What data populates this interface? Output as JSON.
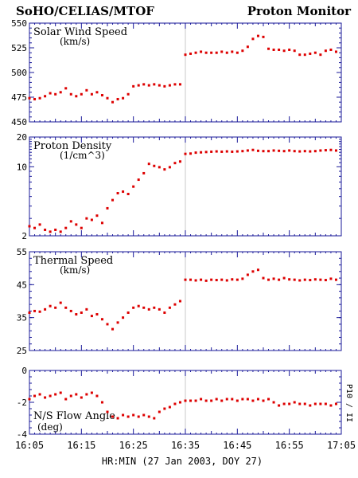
{
  "header": {
    "left_title": "SoHO/CELIAS/MTOF",
    "right_title": "Proton Monitor"
  },
  "side_label": "P10 / II",
  "chart_data": [
    {
      "type": "scatter",
      "title": "Solar Wind Speed",
      "subtitle": "(km/s)",
      "ylim": [
        450,
        550
      ],
      "yticks": [
        450,
        475,
        500,
        525,
        550
      ],
      "ytick_labels": [
        "450",
        "475",
        "500",
        "525",
        "550"
      ],
      "log": false,
      "color": "#dd0000",
      "x_minutes": [
        0,
        1,
        2,
        3,
        4,
        5,
        6,
        7,
        8,
        9,
        10,
        11,
        12,
        13,
        14,
        15,
        16,
        17,
        18,
        19,
        20,
        21,
        22,
        23,
        24,
        25,
        26,
        27,
        28,
        29,
        30,
        31,
        32,
        33,
        34,
        35,
        36,
        37,
        38,
        39,
        40,
        41,
        42,
        43,
        44,
        45,
        46,
        47,
        48,
        49,
        50,
        51,
        52,
        53,
        54,
        55,
        56,
        57,
        58,
        59
      ],
      "values": [
        474,
        473,
        474,
        476,
        479,
        478,
        480,
        484,
        478,
        476,
        478,
        482,
        478,
        480,
        477,
        474,
        470,
        473,
        474,
        478,
        486,
        487,
        488,
        487,
        488,
        487,
        486,
        487,
        488,
        488,
        518,
        519,
        520,
        521,
        520,
        520,
        520,
        521,
        520,
        521,
        520,
        522,
        526,
        534,
        537,
        536,
        524,
        523,
        523,
        522,
        523,
        522,
        518,
        518,
        519,
        520,
        518,
        522,
        523,
        521
      ]
    },
    {
      "type": "scatter",
      "title": "Proton Density",
      "subtitle": "(1/cm^3)",
      "ylim": [
        2,
        20
      ],
      "yticks": [
        2,
        10,
        20
      ],
      "ytick_labels": [
        "2",
        "10",
        "20"
      ],
      "log": true,
      "color": "#dd0000",
      "x_minutes": [
        0,
        1,
        2,
        3,
        4,
        5,
        6,
        7,
        8,
        9,
        10,
        11,
        12,
        13,
        14,
        15,
        16,
        17,
        18,
        19,
        20,
        21,
        22,
        23,
        24,
        25,
        26,
        27,
        28,
        29,
        30,
        31,
        32,
        33,
        34,
        35,
        36,
        37,
        38,
        39,
        40,
        41,
        42,
        43,
        44,
        45,
        46,
        47,
        48,
        49,
        50,
        51,
        52,
        53,
        54,
        55,
        56,
        57,
        58,
        59
      ],
      "values": [
        2.5,
        2.4,
        2.6,
        2.3,
        2.2,
        2.3,
        2.2,
        2.4,
        2.8,
        2.6,
        2.4,
        3.0,
        2.9,
        3.2,
        2.7,
        3.8,
        4.6,
        5.4,
        5.6,
        5.3,
        6.3,
        7.4,
        8.6,
        10.7,
        10.2,
        9.9,
        9.4,
        9.9,
        10.9,
        11.3,
        13.5,
        13.6,
        13.9,
        14.0,
        14.1,
        14.2,
        14.3,
        14.2,
        14.3,
        14.2,
        14.3,
        14.4,
        14.6,
        14.8,
        14.5,
        14.4,
        14.4,
        14.6,
        14.5,
        14.4,
        14.6,
        14.4,
        14.3,
        14.4,
        14.3,
        14.4,
        14.6,
        14.7,
        14.8,
        14.6
      ]
    },
    {
      "type": "scatter",
      "title": "Thermal Speed",
      "subtitle": "(km/s)",
      "ylim": [
        25,
        55
      ],
      "yticks": [
        25,
        35,
        45,
        55
      ],
      "ytick_labels": [
        "25",
        "35",
        "45",
        "55"
      ],
      "log": false,
      "color": "#dd0000",
      "x_minutes": [
        0,
        1,
        2,
        3,
        4,
        5,
        6,
        7,
        8,
        9,
        10,
        11,
        12,
        13,
        14,
        15,
        16,
        17,
        18,
        19,
        20,
        21,
        22,
        23,
        24,
        25,
        26,
        27,
        28,
        29,
        30,
        31,
        32,
        33,
        34,
        35,
        36,
        37,
        38,
        39,
        40,
        41,
        42,
        43,
        44,
        45,
        46,
        47,
        48,
        49,
        50,
        51,
        52,
        53,
        54,
        55,
        56,
        57,
        58,
        59
      ],
      "values": [
        36.5,
        37,
        36.8,
        37.5,
        38.5,
        38,
        39.5,
        38,
        37,
        36,
        36.5,
        37.5,
        35.5,
        36,
        34.5,
        33,
        31.5,
        33.5,
        35,
        36.5,
        38,
        38.5,
        38,
        37.5,
        38,
        37.5,
        36.5,
        38,
        39,
        40,
        46.5,
        46.5,
        46.3,
        46.5,
        46.2,
        46.5,
        46.4,
        46.5,
        46.3,
        46.6,
        46.5,
        46.8,
        48,
        49,
        49.5,
        47,
        46.5,
        46.8,
        46.5,
        47,
        46.6,
        46.5,
        46.3,
        46.5,
        46.4,
        46.6,
        46.5,
        46.4,
        46.8,
        46.5
      ]
    },
    {
      "type": "scatter",
      "title": "N/S Flow Angle",
      "subtitle": "(deg)",
      "ylim": [
        -4,
        0
      ],
      "yticks": [
        -4,
        -2,
        0
      ],
      "ytick_labels": [
        "-4",
        "-2",
        "0"
      ],
      "log": false,
      "color": "#dd0000",
      "x_minutes": [
        0,
        1,
        2,
        3,
        4,
        5,
        6,
        7,
        8,
        9,
        10,
        11,
        12,
        13,
        14,
        15,
        16,
        17,
        18,
        19,
        20,
        21,
        22,
        23,
        24,
        25,
        26,
        27,
        28,
        29,
        30,
        31,
        32,
        33,
        34,
        35,
        36,
        37,
        38,
        39,
        40,
        41,
        42,
        43,
        44,
        45,
        46,
        47,
        48,
        49,
        50,
        51,
        52,
        53,
        54,
        55,
        56,
        57,
        58,
        59
      ],
      "values": [
        -1.8,
        -1.6,
        -1.5,
        -1.7,
        -1.6,
        -1.5,
        -1.4,
        -1.8,
        -1.6,
        -1.5,
        -1.7,
        -1.5,
        -1.4,
        -1.6,
        -2.0,
        -2.6,
        -2.9,
        -3.0,
        -2.8,
        -2.9,
        -2.8,
        -2.9,
        -2.8,
        -2.9,
        -3.0,
        -2.6,
        -2.4,
        -2.3,
        -2.1,
        -2.0,
        -1.9,
        -1.9,
        -1.9,
        -1.8,
        -1.9,
        -1.9,
        -1.8,
        -1.9,
        -1.8,
        -1.8,
        -1.9,
        -1.8,
        -1.8,
        -1.9,
        -1.8,
        -1.9,
        -1.8,
        -2.0,
        -2.2,
        -2.1,
        -2.1,
        -2.0,
        -2.1,
        -2.1,
        -2.2,
        -2.1,
        -2.1,
        -2.1,
        -2.2,
        -2.1
      ]
    }
  ],
  "x_axis": {
    "tick_labels": [
      "16:05",
      "16:15",
      "16:25",
      "16:35",
      "16:45",
      "16:55",
      "17:05"
    ],
    "label": "HR:MIN (27 Jan 2003, DOY 27)",
    "xlim_minutes": [
      0,
      60
    ],
    "marker_minute": 30
  }
}
